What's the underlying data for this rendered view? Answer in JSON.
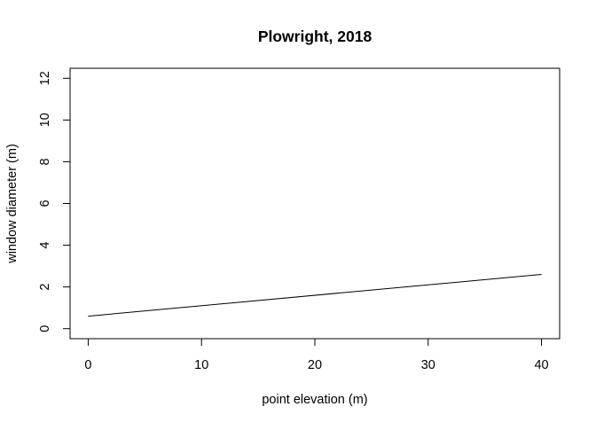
{
  "chart_data": {
    "type": "line",
    "title": "Plowright, 2018",
    "xlabel": "point elevation (m)",
    "ylabel": "window diameter (m)",
    "xlim": [
      -1.6,
      41.6
    ],
    "ylim": [
      -0.48,
      12.48
    ],
    "xticks": [
      0,
      10,
      20,
      30,
      40
    ],
    "yticks": [
      0,
      2,
      4,
      6,
      8,
      10,
      12
    ],
    "grid": false,
    "legend": "none",
    "series": [
      {
        "x": [
          0,
          40
        ],
        "y": [
          0.6,
          2.6
        ],
        "color": "#000000"
      }
    ]
  }
}
